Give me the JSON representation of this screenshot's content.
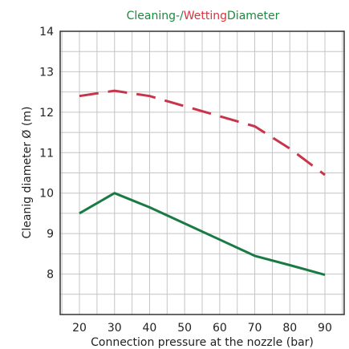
{
  "chart_data": {
    "type": "line",
    "title_parts": [
      {
        "text": "Cleaning-/",
        "color": "#1a8a3c"
      },
      {
        "text": "Wetting",
        "color": "#e0303a"
      },
      {
        "text": "Diameter",
        "color": "#1a8a3c"
      }
    ],
    "xlabel": "Connection pressure at the nozzle (bar)",
    "ylabel": "Cleanig diameter Ø (m)",
    "x_ticks": [
      20,
      30,
      40,
      50,
      60,
      70,
      80,
      90
    ],
    "y_ticks": [
      8,
      9,
      10,
      11,
      12,
      13,
      14
    ],
    "xlim": [
      14.5,
      95.5
    ],
    "ylim": [
      7,
      14
    ],
    "grid": true,
    "series": [
      {
        "style": "dashed",
        "color": "#c8354a",
        "x": [
          20,
          30,
          40,
          50,
          60,
          70,
          80,
          90
        ],
        "y": [
          12.4,
          12.53,
          12.4,
          12.15,
          11.9,
          11.65,
          11.1,
          10.45
        ]
      },
      {
        "style": "solid",
        "color": "#1a7a44",
        "x": [
          20,
          30,
          40,
          50,
          60,
          70,
          80,
          90
        ],
        "y": [
          9.5,
          10.0,
          9.65,
          9.25,
          8.85,
          8.45,
          8.22,
          7.98
        ]
      }
    ]
  }
}
